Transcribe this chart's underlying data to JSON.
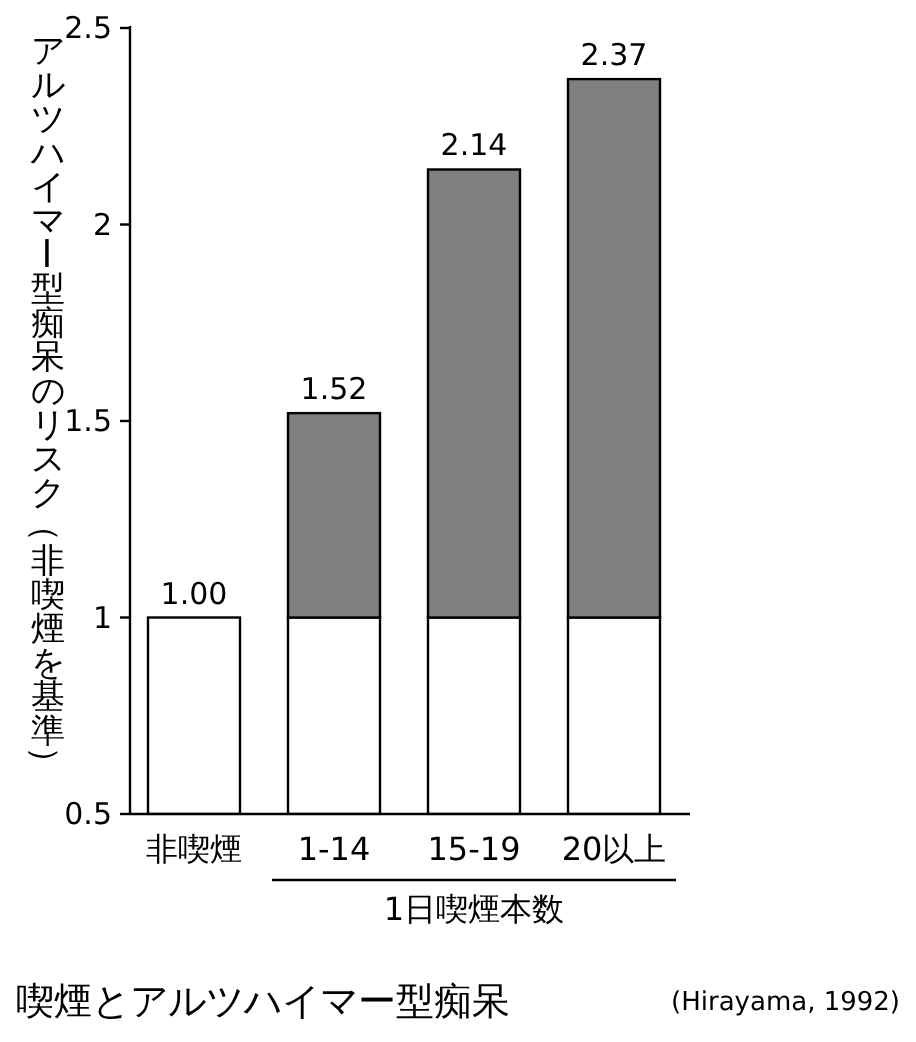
{
  "chart_data": {
    "type": "bar",
    "title": "喫煙とアルツハイマー型痴呆",
    "ylabel": "アルツハイマー型痴呆のリスク（非喫煙を基準）",
    "xlabel": "1日喫煙本数",
    "categories": [
      "非喫煙",
      "1-14",
      "15-19",
      "20以上"
    ],
    "series": [
      {
        "color": "#ffffff",
        "values": [
          1.0,
          1,
          1,
          1
        ]
      },
      {
        "color": "#808080",
        "values": [
          null,
          0.52,
          1.14,
          1.37
        ]
      }
    ],
    "stacked": true,
    "ylim": [
      0.5,
      2.5
    ],
    "yticks": [
      0.5,
      1,
      1.5,
      2,
      2.5
    ],
    "totals": [
      "1.00",
      "1.52",
      "2.14",
      "2.37"
    ],
    "annotations": [
      "(Hirayama, 1992)"
    ]
  }
}
